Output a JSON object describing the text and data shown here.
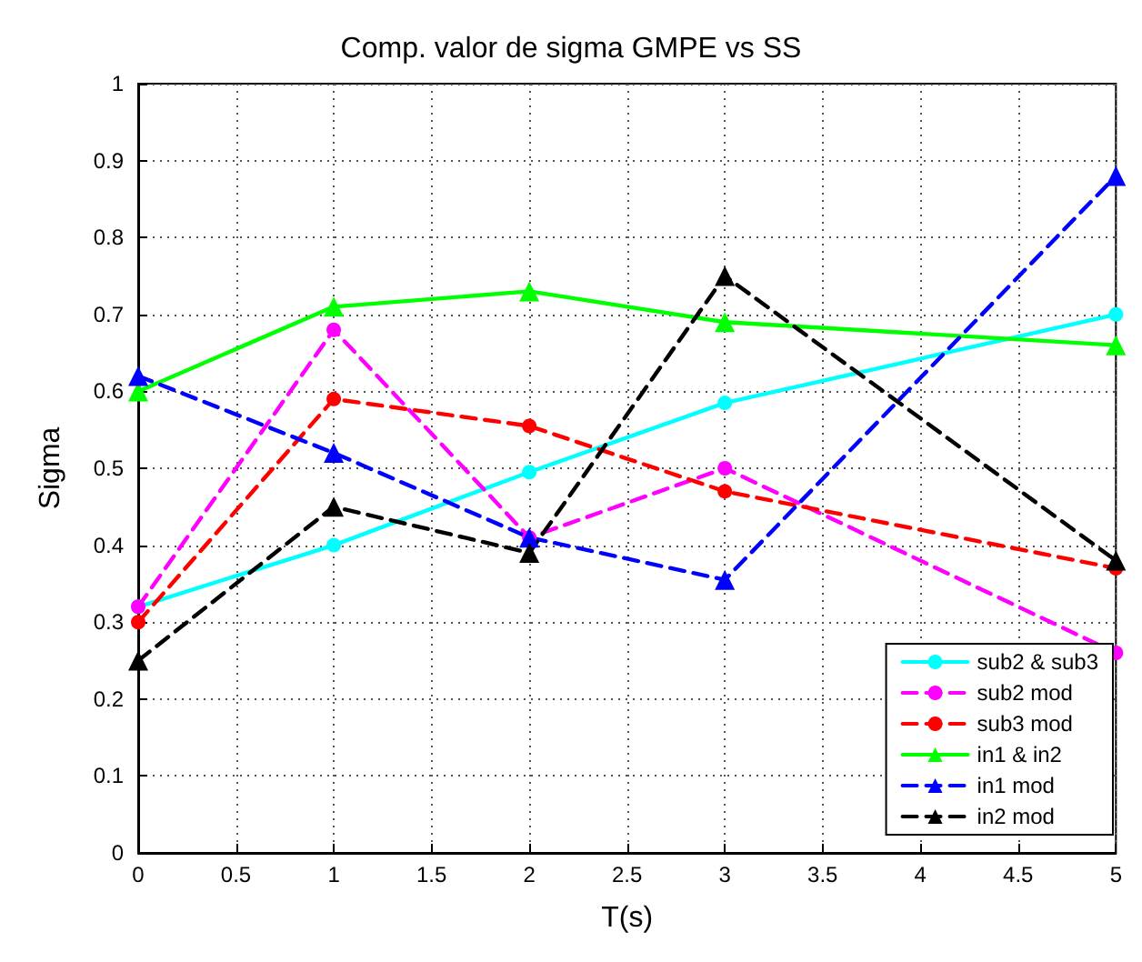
{
  "chart_data": {
    "type": "line",
    "title": "Comp. valor de sigma GMPE vs SS",
    "xlabel": "T(s)",
    "ylabel": "Sigma",
    "x": [
      0,
      1,
      2,
      3,
      5
    ],
    "xlim": [
      0,
      5
    ],
    "xticks": [
      0,
      0.5,
      1,
      1.5,
      2,
      2.5,
      3,
      3.5,
      4,
      4.5,
      5
    ],
    "ylim": [
      0,
      1
    ],
    "yticks": [
      0,
      0.1,
      0.2,
      0.3,
      0.4,
      0.5,
      0.6,
      0.7,
      0.8,
      0.9,
      1
    ],
    "grid": true,
    "legend": "bottom right",
    "series": [
      {
        "name": "sub2 & sub3",
        "color": "#00ffff",
        "marker": "circle",
        "line_style": "solid",
        "values": [
          0.32,
          0.4,
          0.495,
          0.585,
          0.7
        ]
      },
      {
        "name": "sub2 mod",
        "color": "#ff00ff",
        "marker": "circle",
        "line_style": "dashed",
        "values": [
          0.32,
          0.68,
          0.41,
          0.5,
          0.26
        ]
      },
      {
        "name": "sub3 mod",
        "color": "#ff0000",
        "marker": "circle",
        "line_style": "dashed",
        "values": [
          0.3,
          0.59,
          0.555,
          0.47,
          0.37
        ]
      },
      {
        "name": "in1 & in2",
        "color": "#00ff00",
        "marker": "triangle",
        "line_style": "solid",
        "values": [
          0.6,
          0.71,
          0.73,
          0.69,
          0.66
        ]
      },
      {
        "name": "in1 mod",
        "color": "#0000ff",
        "marker": "triangle",
        "line_style": "dashed",
        "values": [
          0.62,
          0.52,
          0.41,
          0.355,
          0.88
        ]
      },
      {
        "name": "in2 mod",
        "color": "#000000",
        "marker": "triangle",
        "line_style": "dashed",
        "values": [
          0.25,
          0.45,
          0.39,
          0.75,
          0.38
        ]
      }
    ]
  }
}
